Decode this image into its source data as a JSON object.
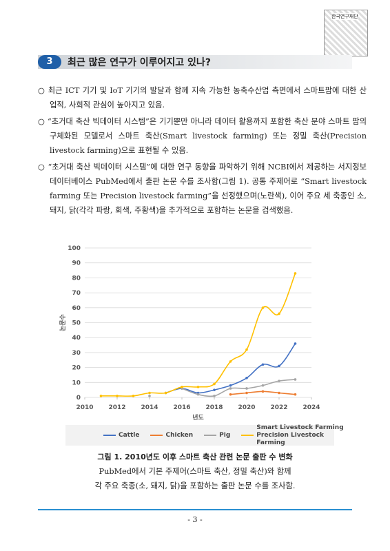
{
  "header": {
    "logo_text": "한국연구재단"
  },
  "section": {
    "number": "3",
    "title": "최근 많은 연구가 이루어지고 있나?"
  },
  "paragraphs": [
    "○ 최근 ICT 기기 및 IoT 기기의 발달과 함께 지속 가능한 농축수산업 측면에서 스마트팜에 대한 산업적, 사회적 관심이 높아지고 있음.",
    "○ “초거대 축산 빅데이터 시스템”은 기기뿐만 아니라 데이터 활용까지 포함한 축산 분야 스마트 팜의 구체화된 모델로서 스마트 축산(Smart livestock farming) 또는 정밀 축산(Precision livestock farming)으로 표현될 수 있음.",
    "○ “초거대 축산 빅데이터 시스템”에 대한 연구 동향을 파악하기 위해 NCBI에서 제공하는 서지정보 데이터베이스 PubMed에서 출판 논문 수를 조사함(그림 1). 공통 주제어로 “Smart livestock farming 또는 Precision livestock farming”을 선정했으며(노란색), 이어 주요 세 축종인 소, 돼지, 닭(각각 파랑, 회색, 주황색)을 추가적으로 포함하는 논문을 검색했음."
  ],
  "chart_data": {
    "type": "line",
    "xlabel": "년도",
    "ylabel": "논문수",
    "x": [
      2011,
      2012,
      2013,
      2014,
      2015,
      2016,
      2017,
      2018,
      2019,
      2020,
      2021,
      2022,
      2023
    ],
    "xlim": [
      2010,
      2024
    ],
    "xticks": [
      2010,
      2012,
      2014,
      2016,
      2018,
      2020,
      2022,
      2024
    ],
    "ylim": [
      0,
      100
    ],
    "yticks": [
      0,
      10,
      20,
      30,
      40,
      50,
      60,
      70,
      80,
      90,
      100
    ],
    "grid": true,
    "series": [
      {
        "name": "Cattle",
        "color": "#4472c4",
        "values": [
          null,
          null,
          null,
          null,
          3,
          6,
          3,
          5,
          8,
          13,
          22,
          21,
          36
        ]
      },
      {
        "name": "Chicken",
        "color": "#ed7d31",
        "values": [
          null,
          null,
          null,
          null,
          null,
          null,
          null,
          null,
          2,
          3,
          4,
          3,
          2
        ]
      },
      {
        "name": "Pig",
        "color": "#a5a5a5",
        "values": [
          null,
          null,
          null,
          1,
          null,
          6,
          2,
          1,
          6,
          6,
          8,
          11,
          12
        ]
      },
      {
        "name": "Smart Livestock Farming Precision Livestock Farming",
        "color": "#ffc000",
        "values": [
          1,
          1,
          1,
          3,
          3,
          7,
          7,
          9,
          24,
          32,
          60,
          56,
          83
        ]
      }
    ]
  },
  "figure": {
    "caption": "그림 1. 2010년도 이후 스마트 축산 관련 논문 출판 수 변화",
    "notes": [
      "PubMed에서 기본 주제어(스마트 축산, 정밀 축산)와 함께",
      "각 주요 축종(소, 돼지, 닭)을 포함하는 출판 논문 수를 조사함."
    ]
  },
  "page_number": "- 3 -"
}
